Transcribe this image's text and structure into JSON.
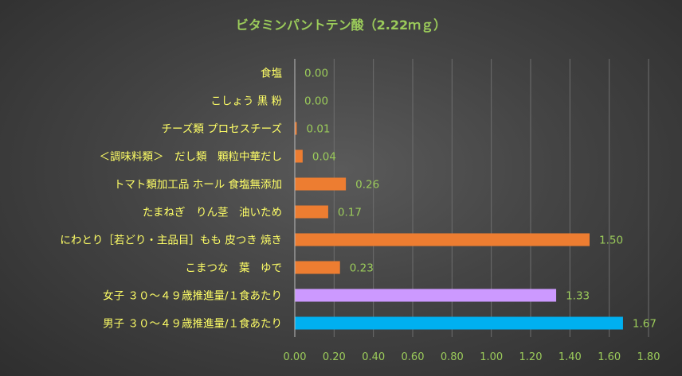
{
  "chart_data": {
    "type": "bar",
    "orientation": "horizontal",
    "title": "ビタミンパントテン酸（2.22ｍｇ）",
    "categories": [
      "食塩",
      "こしょう 黒 粉",
      "チーズ類 プロセスチーズ",
      "＜調味料類＞　だし類　顆粒中華だし",
      "トマト類加工品 ホール 食塩無添加",
      "たまねぎ　りん茎　油いため",
      "にわとり［若どり・主品目］もも 皮つき 焼き",
      "こまつな　葉　ゆで",
      "女子 ３０～４９歳推進量/１食あたり",
      "男子 ３０～４９歳推進量/１食あたり"
    ],
    "values": [
      0.0,
      0.0,
      0.01,
      0.04,
      0.26,
      0.17,
      1.5,
      0.23,
      1.33,
      1.67
    ],
    "data_labels": [
      "0.00",
      "0.00",
      "0.01",
      "0.04",
      "0.26",
      "0.17",
      "1.50",
      "0.23",
      "1.33",
      "1.67"
    ],
    "bar_colors": [
      "#ED7D31",
      "#ED7D31",
      "#ED7D31",
      "#ED7D31",
      "#ED7D31",
      "#ED7D31",
      "#ED7D31",
      "#ED7D31",
      "#CC99FF",
      "#00B0F0"
    ],
    "xlim": [
      0,
      1.8
    ],
    "x_ticks": [
      "0.00",
      "0.20",
      "0.40",
      "0.60",
      "0.80",
      "1.00",
      "1.20",
      "1.40",
      "1.60",
      "1.80"
    ],
    "grid": true,
    "legend": "none",
    "colors": {
      "title": "#9BCB5A",
      "category_label": "#FFFF66",
      "data_label": "#9BCB5A",
      "tick_label": "#9BCB5A"
    }
  }
}
